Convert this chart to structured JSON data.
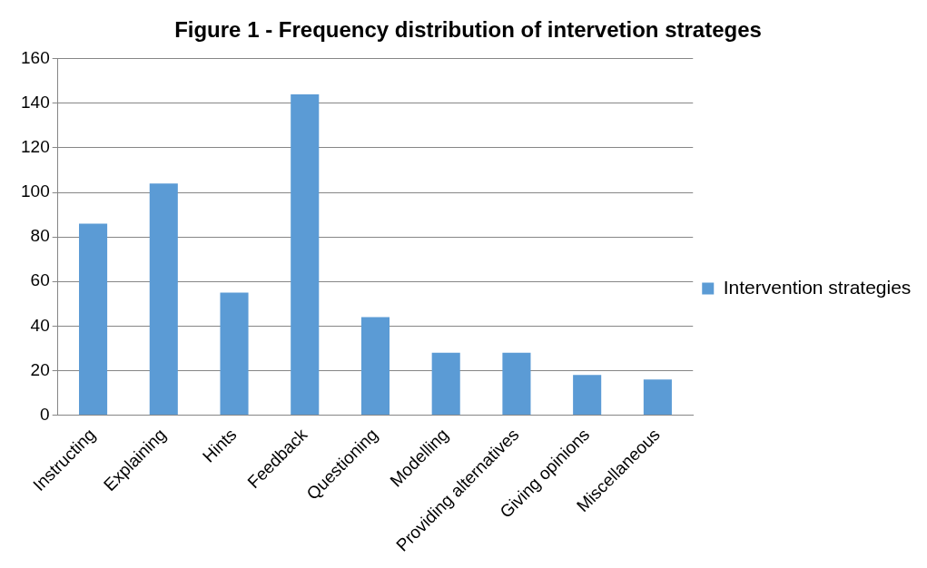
{
  "chart_data": {
    "type": "bar",
    "title": "Figure 1 - Frequency distribution of intervetion strateges",
    "categories": [
      "Instructing",
      "Explaining",
      "Hints",
      "Feedback",
      "Questioning",
      "Modelling",
      "Providing alternatives",
      "Giving opinions",
      "Miscellaneous"
    ],
    "series": [
      {
        "name": "Intervention strategies",
        "color": "#5b9bd5",
        "values": [
          86,
          104,
          55,
          144,
          44,
          28,
          28,
          18,
          16
        ]
      }
    ],
    "ylim": [
      0,
      160
    ],
    "yticks": [
      0,
      20,
      40,
      60,
      80,
      100,
      120,
      140,
      160
    ],
    "grid": "y",
    "legend": "right"
  }
}
